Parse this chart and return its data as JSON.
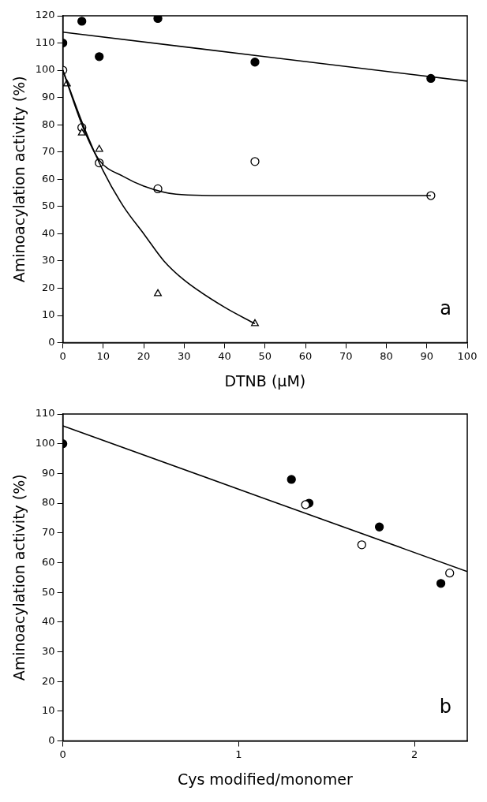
{
  "chart_data": [
    {
      "type": "scatter",
      "xlabel": "DTNB (μM)",
      "ylabel": "Aminoacylation activity (%)",
      "annotations": [
        "a"
      ],
      "xlim": [
        0,
        100
      ],
      "xticks": [
        0,
        10,
        20,
        30,
        40,
        50,
        60,
        70,
        80,
        90,
        100
      ],
      "ylim": [
        0,
        120
      ],
      "yticks": [
        0,
        10,
        20,
        30,
        40,
        50,
        60,
        70,
        80,
        90,
        100,
        110,
        120
      ],
      "grid": false,
      "legend": false,
      "series": [
        {
          "type": "scatter",
          "marker": "circle",
          "color": "#000000",
          "x": [
            0,
            4.7,
            9,
            23.5,
            47.5,
            91
          ],
          "values": [
            110,
            118,
            105,
            119,
            103,
            97
          ]
        },
        {
          "type": "scatter",
          "marker": "circle",
          "color": "#ffffff",
          "x": [
            0,
            4.7,
            9,
            23.5,
            47.5,
            91
          ],
          "values": [
            100,
            79,
            66,
            56.5,
            66.5,
            54
          ]
        },
        {
          "type": "scatter",
          "marker": "triangle",
          "color": "#ffffff",
          "x": [
            1,
            4.7,
            9,
            23.5,
            47.5
          ],
          "values": [
            95,
            77,
            71,
            18,
            7
          ]
        },
        {
          "type": "line",
          "marker": "none",
          "color": "#000000",
          "x": [
            0,
            100
          ],
          "values": [
            114,
            96
          ]
        },
        {
          "type": "line",
          "marker": "none",
          "color": "#000000",
          "x": [
            0,
            5,
            9,
            15,
            20,
            28,
            40,
            91
          ],
          "values": [
            100,
            79,
            67,
            61,
            57.5,
            54.5,
            54,
            54
          ]
        },
        {
          "type": "line",
          "marker": "none",
          "color": "#000000",
          "x": [
            0,
            5,
            10,
            15,
            20,
            25,
            30,
            40,
            47.5
          ],
          "values": [
            100,
            80,
            63,
            50,
            40,
            30,
            23,
            13,
            7
          ]
        }
      ]
    },
    {
      "type": "scatter",
      "xlabel": "Cys modified/monomer",
      "ylabel": "Aminoacylation activity (%)",
      "annotations": [
        "b"
      ],
      "xlim": [
        0,
        2.3
      ],
      "xticks": [
        0,
        1,
        2
      ],
      "ylim": [
        0,
        110
      ],
      "yticks": [
        0,
        10,
        20,
        30,
        40,
        50,
        60,
        70,
        80,
        90,
        100,
        110
      ],
      "grid": false,
      "legend": false,
      "series": [
        {
          "type": "scatter",
          "marker": "circle",
          "color": "#000000",
          "x": [
            0,
            1.3,
            1.4,
            1.8,
            2.15
          ],
          "values": [
            100,
            88,
            80,
            72,
            53
          ]
        },
        {
          "type": "scatter",
          "marker": "circle",
          "color": "#ffffff",
          "x": [
            1.38,
            1.7,
            2.2
          ],
          "values": [
            79.5,
            66,
            56.5
          ]
        },
        {
          "type": "line",
          "marker": "none",
          "color": "#000000",
          "x": [
            0,
            2.3
          ],
          "values": [
            106,
            57
          ]
        }
      ]
    }
  ]
}
